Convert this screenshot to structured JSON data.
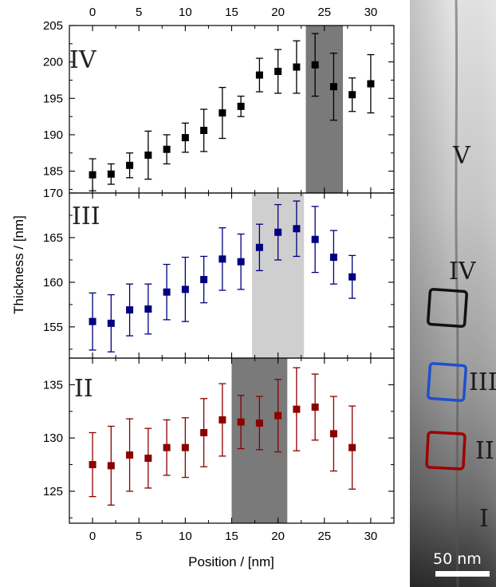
{
  "chart_data": [
    {
      "type": "scatter",
      "panel_label": "IV",
      "x": [
        0,
        2,
        4,
        6,
        8,
        10,
        12,
        14,
        16,
        18,
        20,
        22,
        24,
        26,
        28,
        30
      ],
      "y": [
        184.5,
        184.6,
        185.8,
        187.2,
        188.0,
        189.6,
        190.6,
        193.0,
        193.9,
        198.2,
        198.7,
        199.3,
        199.6,
        196.6,
        195.5,
        197.0
      ],
      "err": [
        2.2,
        1.4,
        1.7,
        3.3,
        2.0,
        2.0,
        2.9,
        3.5,
        1.4,
        2.3,
        3.0,
        3.6,
        4.3,
        4.6,
        2.3,
        4.0
      ],
      "ylim": [
        182,
        205
      ],
      "yticks": [
        185,
        190,
        195,
        200,
        205
      ],
      "color": "#000000",
      "highlight": {
        "from": 23,
        "to": 27,
        "color": "#7a7a7a"
      }
    },
    {
      "type": "scatter",
      "panel_label": "III",
      "x": [
        0,
        2,
        4,
        6,
        8,
        10,
        12,
        14,
        16,
        18,
        20,
        22,
        24,
        26,
        28
      ],
      "y": [
        155.6,
        155.4,
        156.9,
        157.0,
        158.9,
        159.2,
        160.3,
        162.6,
        162.3,
        163.9,
        165.6,
        166.0,
        164.8,
        162.8,
        160.6
      ],
      "err": [
        3.2,
        3.2,
        2.9,
        2.8,
        3.1,
        3.6,
        2.6,
        3.5,
        3.1,
        2.6,
        3.1,
        3.1,
        3.7,
        3.0,
        2.4
      ],
      "ylim": [
        151.5,
        170
      ],
      "yticks": [
        155,
        160,
        165,
        170
      ],
      "color": "#000080",
      "highlight": {
        "from": 17.2,
        "to": 22.8,
        "color": "#cfcfcf"
      }
    },
    {
      "type": "scatter",
      "panel_label": "II",
      "x": [
        0,
        2,
        4,
        6,
        8,
        10,
        12,
        14,
        16,
        18,
        20,
        22,
        24,
        26,
        28
      ],
      "y": [
        127.5,
        127.4,
        128.4,
        128.1,
        129.1,
        129.1,
        130.5,
        131.7,
        131.5,
        131.4,
        132.1,
        132.7,
        132.9,
        130.4,
        129.1
      ],
      "err": [
        3.0,
        3.7,
        3.4,
        2.8,
        2.6,
        2.8,
        3.2,
        3.4,
        2.5,
        2.5,
        3.4,
        3.9,
        3.1,
        3.5,
        3.9
      ],
      "ylim": [
        122,
        137.5
      ],
      "yticks": [
        125,
        130,
        135
      ],
      "color": "#8b0000",
      "highlight": {
        "from": 15,
        "to": 21,
        "color": "#7a7a7a"
      }
    }
  ],
  "x_axis": {
    "label": "Position / [nm]",
    "range": [
      -2.5,
      32.5
    ],
    "ticks": [
      0,
      5,
      10,
      15,
      20,
      25,
      30
    ],
    "top_ticks": [
      0,
      5,
      10,
      15,
      20,
      25,
      30
    ]
  },
  "y_axis": {
    "label": "Thickness / [nm]"
  },
  "micrograph": {
    "labels": [
      "V",
      "IV",
      "III",
      "II",
      "I"
    ],
    "boxes": [
      {
        "color": "#111111"
      },
      {
        "color": "#1f4fcf"
      },
      {
        "color": "#a00000"
      }
    ],
    "scale_bar_text": "50 nm"
  }
}
